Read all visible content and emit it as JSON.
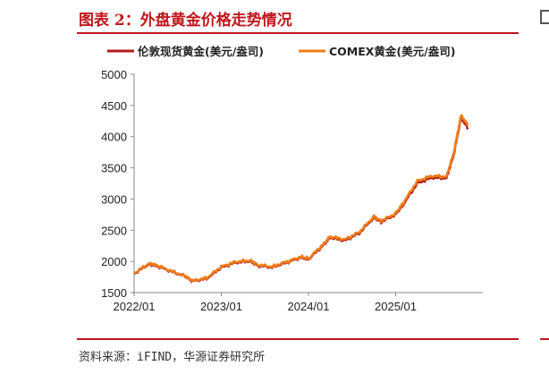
{
  "title": "图表 2：外盘黄金价格走势情况",
  "source": "资料来源：iFIND，华源证券研究所",
  "chart_data": {
    "type": "line",
    "title": "",
    "xlabel": "",
    "ylabel": "",
    "ylim": [
      1500,
      5000
    ],
    "y_ticks": [
      "5000",
      "4500",
      "4000",
      "3500",
      "3000",
      "2500",
      "2000",
      "1500"
    ],
    "x_ticks": [
      "2022/01",
      "2023/01",
      "2024/01",
      "2025/01"
    ],
    "legend_position": "top",
    "grid": false,
    "x": [
      "2022/01",
      "2022/03",
      "2022/04",
      "2022/06",
      "2022/08",
      "2022/09",
      "2022/11",
      "2023/01",
      "2023/03",
      "2023/05",
      "2023/06",
      "2023/08",
      "2023/10",
      "2023/12",
      "2024/01",
      "2024/03",
      "2024/04",
      "2024/06",
      "2024/08",
      "2024/10",
      "2024/11",
      "2025/01",
      "2025/02",
      "2025/04",
      "2025/06",
      "2025/08",
      "2025/09",
      "2025/10",
      "2025/11"
    ],
    "series": [
      {
        "name": "伦敦现货黄金(美元/盎司)",
        "color": "#b01a1a",
        "values": [
          1800,
          1950,
          1930,
          1840,
          1760,
          1680,
          1720,
          1900,
          1980,
          2000,
          1930,
          1900,
          1980,
          2060,
          2030,
          2250,
          2380,
          2330,
          2450,
          2700,
          2630,
          2750,
          2900,
          3250,
          3340,
          3330,
          3700,
          4300,
          4120
        ]
      },
      {
        "name": "COMEX黄金(美元/盎司)",
        "color": "#ef7d1a",
        "values": [
          1810,
          1965,
          1945,
          1850,
          1770,
          1690,
          1735,
          1915,
          1995,
          2015,
          1945,
          1915,
          1995,
          2075,
          2045,
          2270,
          2400,
          2350,
          2470,
          2720,
          2650,
          2770,
          2930,
          3290,
          3370,
          3360,
          3740,
          4340,
          4180
        ]
      }
    ]
  }
}
